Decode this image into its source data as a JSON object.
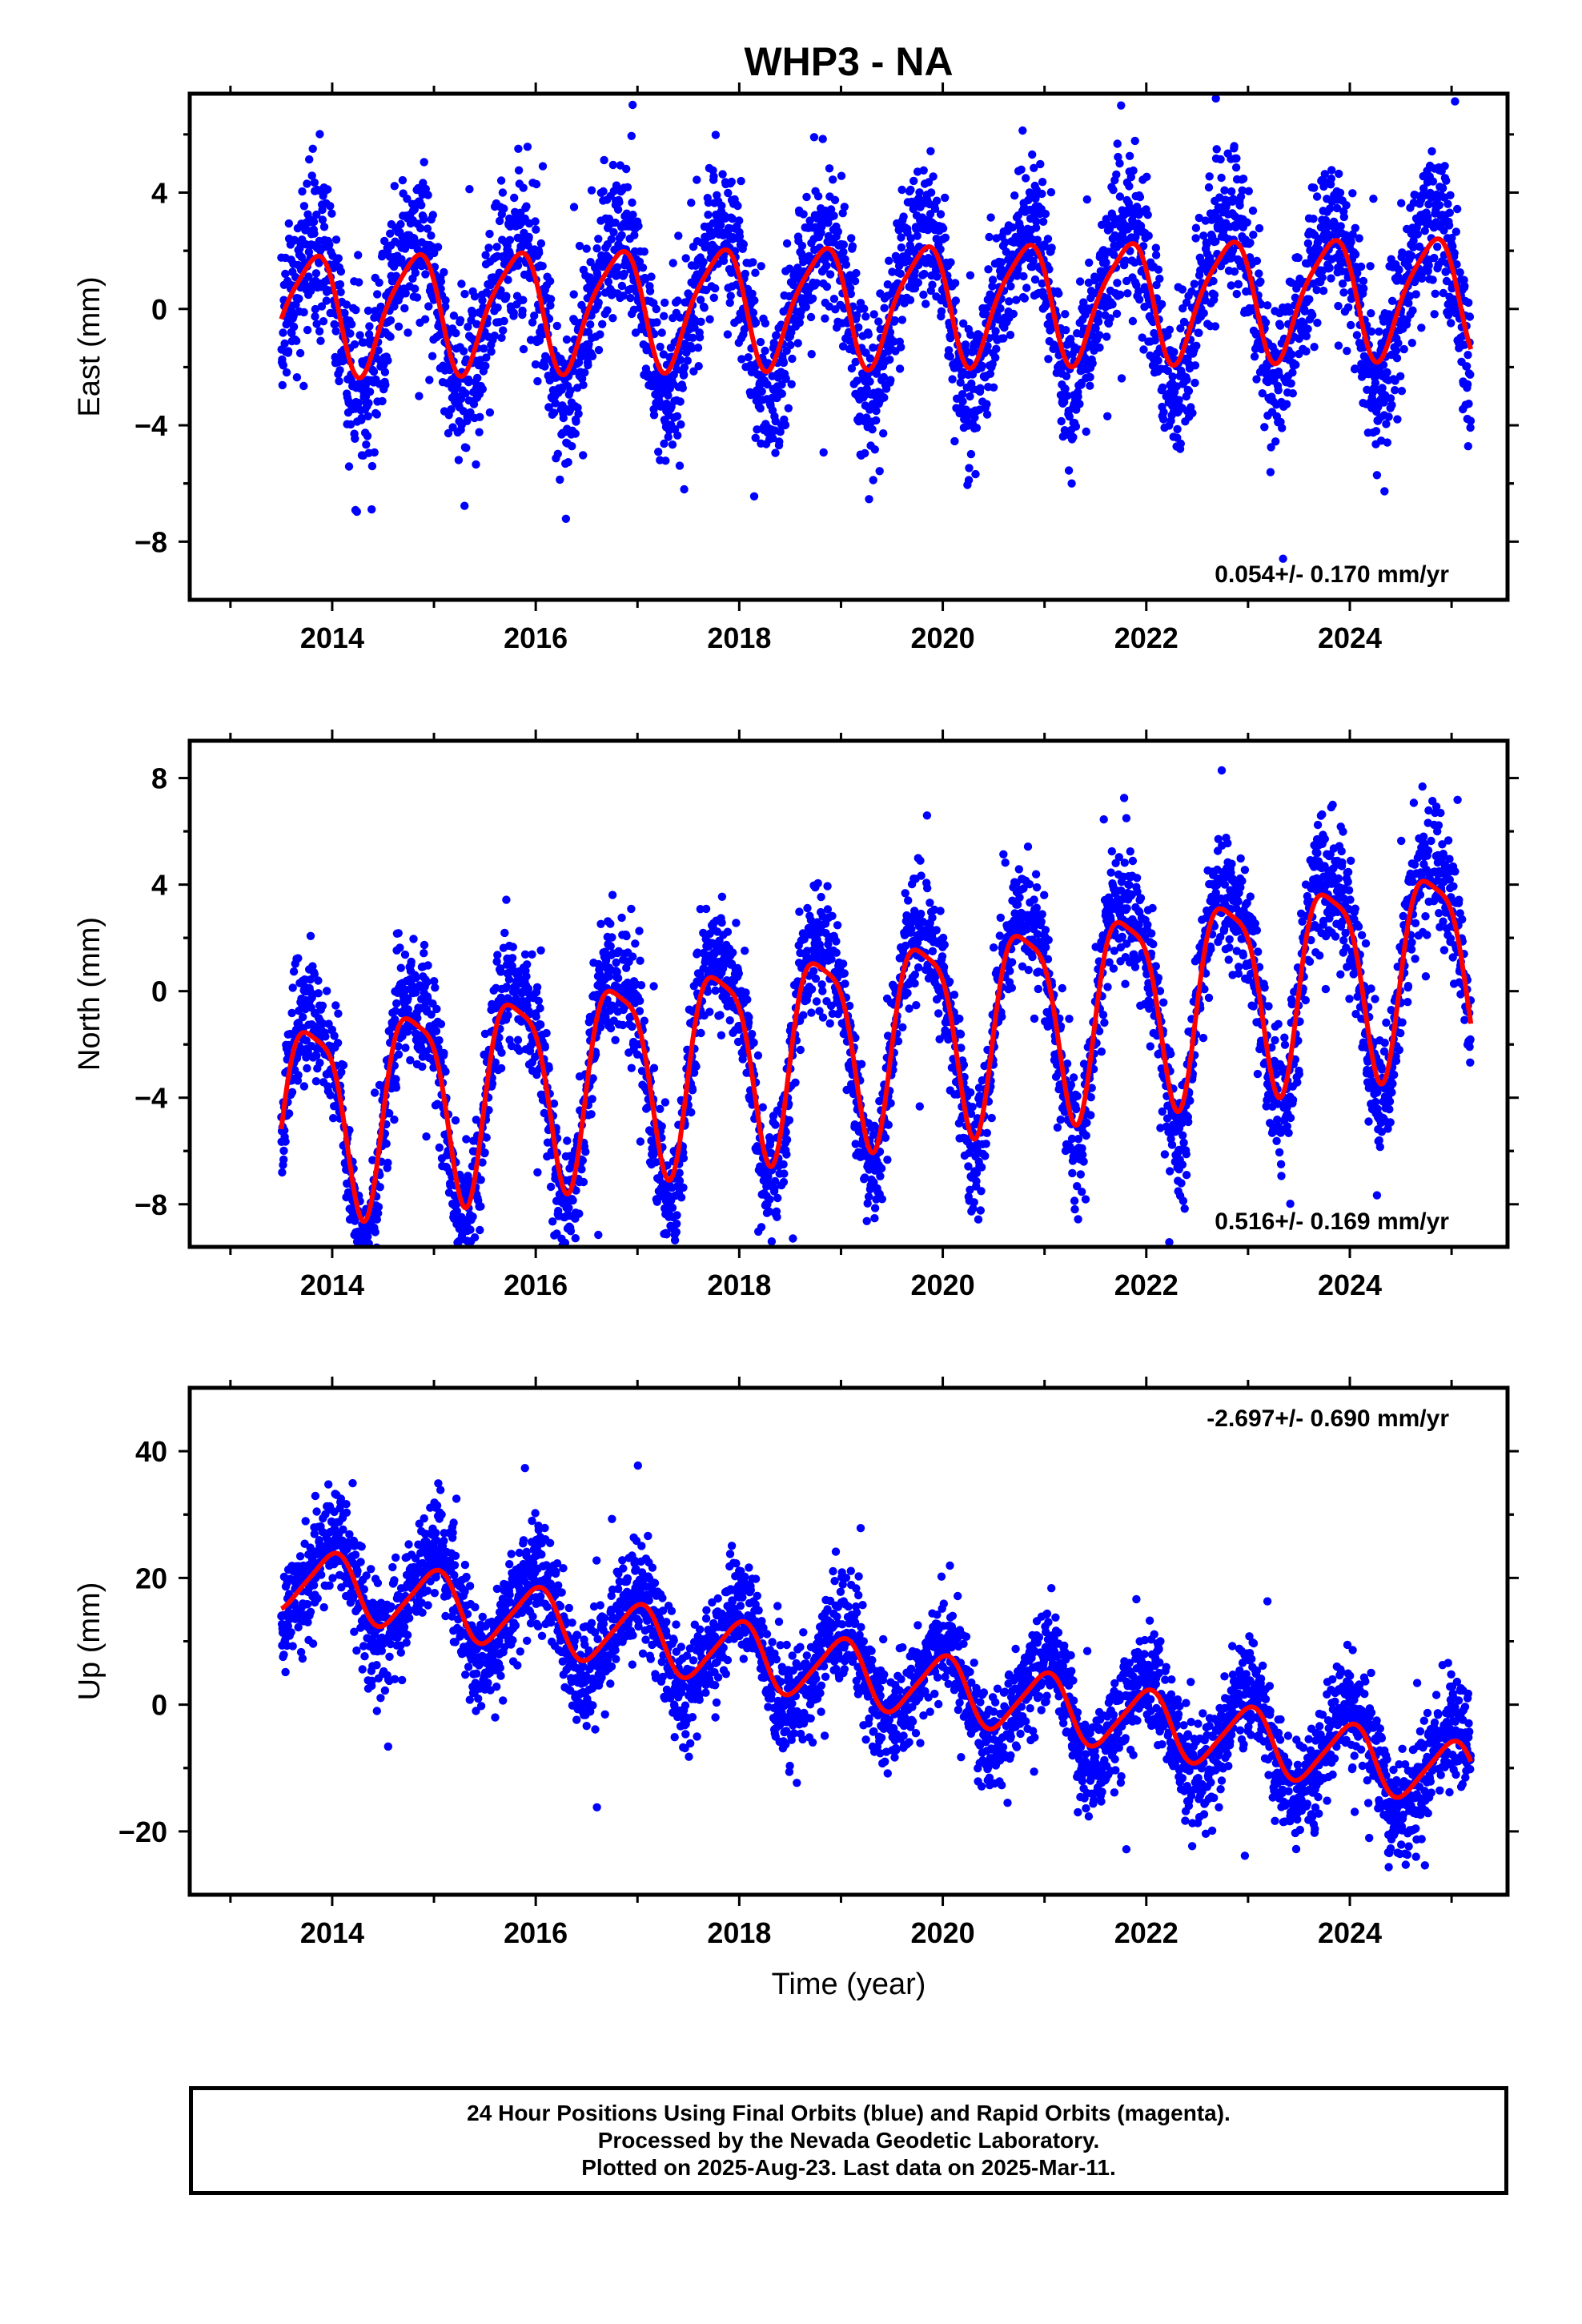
{
  "chart_data": {
    "title": "WHP3 - NA",
    "xlabel": "Time (year)",
    "type": "scatter",
    "x_ticks": [
      2014,
      2016,
      2018,
      2020,
      2022,
      2024
    ],
    "xlim": [
      2012.6,
      2025.55
    ],
    "series_colors": {
      "points": "#0000ff",
      "model": "#ff0000",
      "rapid": "#ff00ff"
    },
    "panels": [
      {
        "name": "east",
        "ylabel": "East (mm)",
        "ylim": [
          -10.0,
          7.4
        ],
        "y_ticks": [
          -8,
          -4,
          0,
          4
        ],
        "y_tick_labels": [
          "−8",
          "−4",
          "0",
          "4"
        ],
        "rate": "0.054+/- 0.170 mm/yr",
        "model": {
          "offset": 0.2,
          "slope": 0.054,
          "amp1": 2.0,
          "phase1": 0.55,
          "amp2": 0.4,
          "phase2": 0.35
        },
        "scatter_sigma": 1.3,
        "data_range": [
          2013.5,
          2025.19
        ]
      },
      {
        "name": "north",
        "ylabel": "North (mm)",
        "ylim": [
          -9.6,
          9.4
        ],
        "y_ticks": [
          -8,
          -4,
          0,
          4,
          8
        ],
        "y_tick_labels": [
          "−8",
          "−4",
          "0",
          "4",
          "8"
        ],
        "rate": "0.516+/- 0.169 mm/yr",
        "model": {
          "offset": -1.6,
          "slope": 0.516,
          "amp1": 3.6,
          "phase1": 0.55,
          "amp2": 0.9,
          "phase2": 0.45
        },
        "scatter_sigma": 1.1,
        "data_range": [
          2013.5,
          2025.19
        ]
      },
      {
        "name": "up",
        "ylabel": "Up (mm)",
        "ylim": [
          -30.0,
          50.0
        ],
        "y_ticks": [
          -20,
          0,
          20,
          40
        ],
        "y_tick_labels": [
          "−20",
          "0",
          "20",
          "40"
        ],
        "rate": "-2.697+/- 0.690 mm/yr",
        "model": {
          "offset": 4.5,
          "slope": -2.697,
          "amp1": 5.0,
          "phase1": 0.75,
          "amp2": 0.8,
          "phase2": 0.5
        },
        "scatter_sigma": 4.0,
        "data_range": [
          2013.5,
          2025.19
        ]
      }
    ]
  },
  "caption": {
    "line1": "24 Hour Positions Using Final Orbits (blue) and Rapid Orbits (magenta).",
    "line2": "Processed by the Nevada Geodetic Laboratory.",
    "line3": "Plotted on 2025-Aug-23. Last data on 2025-Mar-11."
  }
}
